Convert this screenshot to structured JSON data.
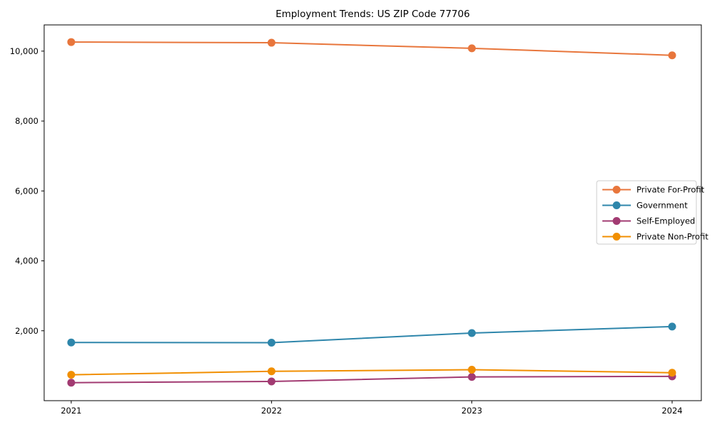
{
  "window": {
    "background_color": "#ffffff"
  },
  "chart_data": {
    "type": "line",
    "title": "Employment Trends: US ZIP Code 77706",
    "x_categories": [
      "2021",
      "2022",
      "2023",
      "2024"
    ],
    "series": [
      {
        "name": "Private For-Profit",
        "color": "#E8763C",
        "values": [
          10260,
          10240,
          10080,
          9880
        ]
      },
      {
        "name": "Government",
        "color": "#2E86AB",
        "values": [
          1665,
          1660,
          1935,
          2120
        ]
      },
      {
        "name": "Self-Employed",
        "color": "#A23B72",
        "values": [
          515,
          550,
          680,
          695
        ]
      },
      {
        "name": "Private Non-Profit",
        "color": "#F18F01",
        "values": [
          740,
          840,
          885,
          800
        ]
      }
    ],
    "ylim": [
      0,
      10750
    ],
    "yticks": [
      2000,
      4000,
      6000,
      8000,
      10000
    ],
    "ytick_labels": [
      "2,000",
      "4,000",
      "6,000",
      "8,000",
      "10,000"
    ],
    "grid": false,
    "legend_position": "center right",
    "axis_color": "#000000",
    "marker": "circle",
    "line_width": 2,
    "marker_radius": 5.5
  }
}
